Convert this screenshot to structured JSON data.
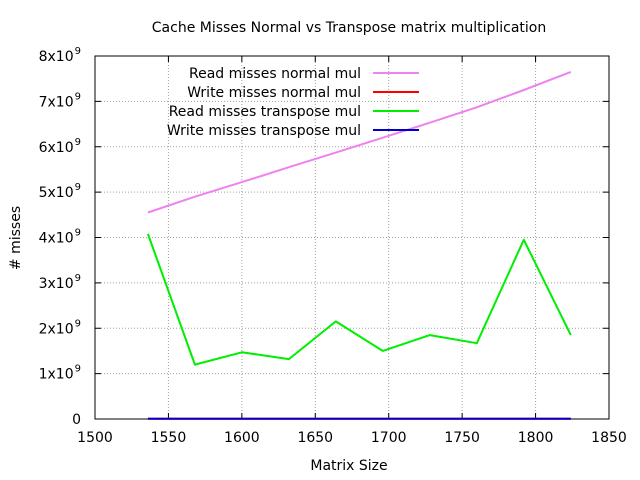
{
  "chart_data": {
    "type": "line",
    "title": "Cache Misses Normal vs Transpose matrix multiplication",
    "xlabel": "Matrix Size",
    "ylabel": "# misses",
    "xlim": [
      1500,
      1850
    ],
    "ylim": [
      0,
      8000000000
    ],
    "grid": true,
    "legend_position": "top-left",
    "x_ticks": [
      "1500",
      "1550",
      "1600",
      "1650",
      "1700",
      "1750",
      "1800",
      "1850"
    ],
    "y_ticks": [
      {
        "value": 0,
        "base": "0",
        "exp": ""
      },
      {
        "value": 1000000000,
        "base": "1x10",
        "exp": "9"
      },
      {
        "value": 2000000000,
        "base": "2x10",
        "exp": "9"
      },
      {
        "value": 3000000000,
        "base": "3x10",
        "exp": "9"
      },
      {
        "value": 4000000000,
        "base": "4x10",
        "exp": "9"
      },
      {
        "value": 5000000000,
        "base": "5x10",
        "exp": "9"
      },
      {
        "value": 6000000000,
        "base": "6x10",
        "exp": "9"
      },
      {
        "value": 7000000000,
        "base": "7x10",
        "exp": "9"
      },
      {
        "value": 8000000000,
        "base": "8x10",
        "exp": "9"
      }
    ],
    "x": [
      1536,
      1568,
      1600,
      1632,
      1664,
      1696,
      1728,
      1760,
      1792,
      1824
    ],
    "series": [
      {
        "name": "Read misses normal mul",
        "color": "#ee82ee",
        "values": [
          4550000000,
          4900000000,
          5220000000,
          5550000000,
          5870000000,
          6200000000,
          6530000000,
          6870000000,
          7250000000,
          7650000000
        ]
      },
      {
        "name": "Write misses normal mul",
        "color": "#ff0000",
        "values": [
          5000000,
          5000000,
          5000000,
          5000000,
          5000000,
          5000000,
          5000000,
          5000000,
          5000000,
          5000000
        ]
      },
      {
        "name": "Read misses transpose mul",
        "color": "#00ee00",
        "values": [
          4080000000,
          1200000000,
          1470000000,
          1320000000,
          2150000000,
          1500000000,
          1850000000,
          1670000000,
          3950000000,
          1850000000
        ]
      },
      {
        "name": "Write misses transpose mul",
        "color": "#0000cd",
        "values": [
          5000000,
          5000000,
          5000000,
          5000000,
          5000000,
          5000000,
          5000000,
          5000000,
          5000000,
          5000000
        ]
      }
    ]
  }
}
